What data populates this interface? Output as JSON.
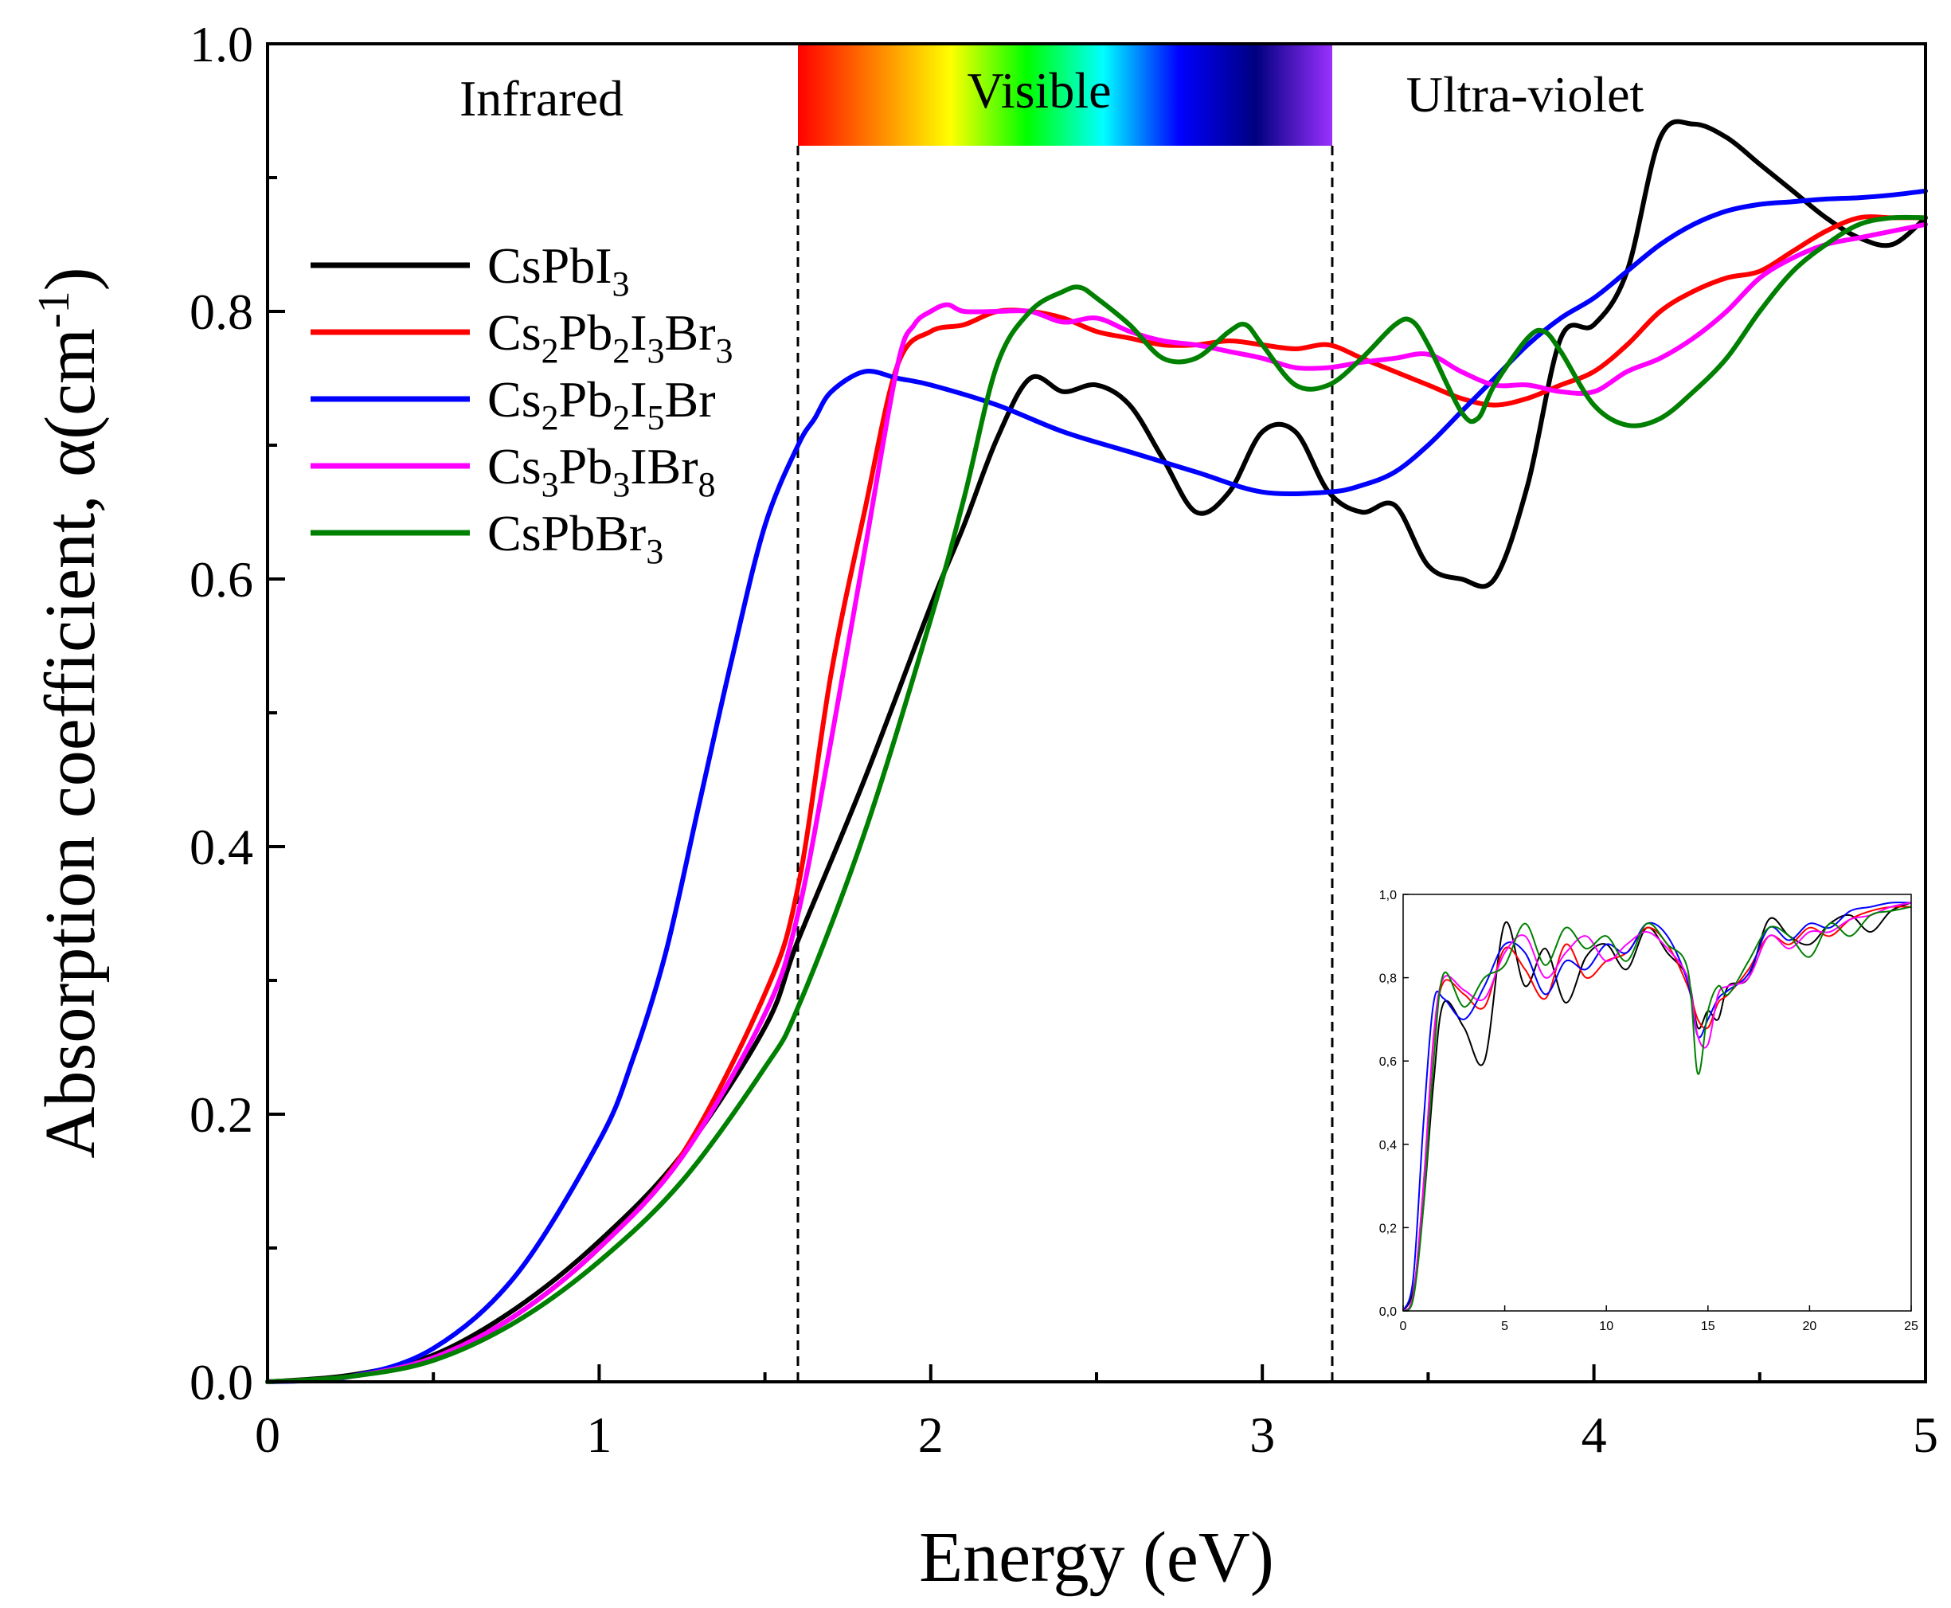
{
  "chart_data": [
    {
      "type": "line",
      "role": "main",
      "title": "",
      "xlabel": "Energy (eV)",
      "ylabel": "Absorption coefficient, α(cm⁻¹)",
      "ylabel_parts": {
        "main": "Absorption coefficient,  α(cm",
        "sup": "-1",
        "close": ")"
      },
      "xlim": [
        0,
        5
      ],
      "ylim": [
        0,
        1.0
      ],
      "xticks": [
        0,
        1,
        2,
        3,
        4,
        5
      ],
      "yticks": [
        0,
        0.2,
        0.4,
        0.6,
        0.8,
        1.0
      ],
      "xtick_labels": [
        "0",
        "1",
        "2",
        "3",
        "4",
        "5"
      ],
      "ytick_labels": [
        "0.0",
        "0.2",
        "0.4",
        "0.6",
        "0.8",
        "1.0"
      ],
      "grid": false,
      "legend_position": "upper-left",
      "regions": [
        {
          "label": "Infrared",
          "from": 0,
          "to": 1.6
        },
        {
          "label": "Visible",
          "from": 1.6,
          "to": 3.2
        },
        {
          "label": "Ultra-violet",
          "from": 3.2,
          "to": 5
        }
      ],
      "boundaries": [
        1.6,
        3.2
      ],
      "spectrum_colors": [
        "#ff0000",
        "#ff8000",
        "#ffff00",
        "#00ff00",
        "#00ffff",
        "#0000ff",
        "#000080",
        "#9b30ff"
      ],
      "series": [
        {
          "name": "CsPbI3",
          "label_parts": [
            [
              "CsPbI",
              ""
            ],
            [
              "3",
              "sub"
            ]
          ],
          "color": "#000000",
          "x": [
            0,
            0.25,
            0.5,
            0.75,
            1.0,
            1.25,
            1.5,
            1.6,
            1.8,
            2.0,
            2.1,
            2.2,
            2.3,
            2.4,
            2.5,
            2.6,
            2.7,
            2.8,
            2.9,
            3.0,
            3.1,
            3.2,
            3.3,
            3.4,
            3.5,
            3.6,
            3.7,
            3.8,
            3.9,
            4.0,
            4.1,
            4.2,
            4.3,
            4.4,
            4.5,
            4.6,
            4.7,
            4.8,
            4.9,
            5.0
          ],
          "y": [
            0,
            0.005,
            0.02,
            0.055,
            0.105,
            0.17,
            0.265,
            0.33,
            0.45,
            0.58,
            0.64,
            0.705,
            0.75,
            0.74,
            0.745,
            0.73,
            0.69,
            0.65,
            0.665,
            0.71,
            0.71,
            0.665,
            0.65,
            0.655,
            0.61,
            0.6,
            0.6,
            0.67,
            0.78,
            0.79,
            0.83,
            0.93,
            0.94,
            0.93,
            0.91,
            0.89,
            0.87,
            0.855,
            0.85,
            0.87
          ]
        },
        {
          "name": "Cs2Pb2I3Br3",
          "label_parts": [
            [
              "Cs",
              ""
            ],
            [
              "2",
              "sub"
            ],
            [
              "Pb",
              ""
            ],
            [
              "2",
              "sub"
            ],
            [
              "I",
              ""
            ],
            [
              "3",
              "sub"
            ],
            [
              "Br",
              ""
            ],
            [
              "3",
              "sub"
            ]
          ],
          "color": "#ff0000",
          "x": [
            0,
            0.25,
            0.5,
            0.75,
            1.0,
            1.25,
            1.5,
            1.6,
            1.7,
            1.8,
            1.9,
            2.0,
            2.1,
            2.2,
            2.3,
            2.4,
            2.5,
            2.6,
            2.7,
            2.8,
            2.9,
            3.0,
            3.1,
            3.2,
            3.3,
            3.4,
            3.5,
            3.6,
            3.7,
            3.8,
            3.9,
            4.0,
            4.1,
            4.2,
            4.3,
            4.4,
            4.5,
            4.6,
            4.7,
            4.8,
            4.9,
            5.0
          ],
          "y": [
            0,
            0.004,
            0.018,
            0.05,
            0.1,
            0.17,
            0.29,
            0.37,
            0.53,
            0.65,
            0.76,
            0.785,
            0.79,
            0.8,
            0.8,
            0.795,
            0.785,
            0.78,
            0.775,
            0.775,
            0.778,
            0.775,
            0.772,
            0.775,
            0.765,
            0.755,
            0.745,
            0.735,
            0.73,
            0.735,
            0.745,
            0.755,
            0.775,
            0.8,
            0.815,
            0.825,
            0.83,
            0.845,
            0.86,
            0.87,
            0.87,
            0.87
          ]
        },
        {
          "name": "Cs2Pb2I5Br",
          "label_parts": [
            [
              "Cs",
              ""
            ],
            [
              "2",
              "sub"
            ],
            [
              "Pb",
              ""
            ],
            [
              "2",
              "sub"
            ],
            [
              "I",
              ""
            ],
            [
              "5",
              "sub"
            ],
            [
              "Br",
              ""
            ]
          ],
          "color": "#0000ff",
          "x": [
            0,
            0.25,
            0.5,
            0.75,
            1.0,
            1.1,
            1.2,
            1.3,
            1.4,
            1.5,
            1.6,
            1.65,
            1.7,
            1.8,
            1.9,
            2.0,
            2.2,
            2.4,
            2.6,
            2.8,
            3.0,
            3.2,
            3.3,
            3.4,
            3.5,
            3.6,
            3.7,
            3.8,
            3.9,
            4.0,
            4.1,
            4.2,
            4.3,
            4.4,
            4.5,
            4.6,
            4.7,
            4.8,
            4.9,
            5.0
          ],
          "y": [
            0,
            0.004,
            0.025,
            0.08,
            0.18,
            0.24,
            0.32,
            0.43,
            0.54,
            0.64,
            0.7,
            0.72,
            0.74,
            0.755,
            0.75,
            0.745,
            0.73,
            0.71,
            0.695,
            0.68,
            0.665,
            0.665,
            0.67,
            0.68,
            0.7,
            0.725,
            0.75,
            0.775,
            0.795,
            0.81,
            0.83,
            0.85,
            0.865,
            0.875,
            0.88,
            0.882,
            0.884,
            0.885,
            0.887,
            0.89
          ]
        },
        {
          "name": "Cs3Pb3IBr8",
          "label_parts": [
            [
              "Cs",
              ""
            ],
            [
              "3",
              "sub"
            ],
            [
              "Pb",
              ""
            ],
            [
              "3",
              "sub"
            ],
            [
              "IBr",
              ""
            ],
            [
              "8",
              "sub"
            ]
          ],
          "color": "#ff00ff",
          "x": [
            0,
            0.25,
            0.5,
            0.75,
            1.0,
            1.25,
            1.5,
            1.6,
            1.7,
            1.8,
            1.9,
            1.95,
            2.0,
            2.05,
            2.1,
            2.2,
            2.3,
            2.4,
            2.5,
            2.6,
            2.7,
            2.8,
            2.9,
            3.0,
            3.1,
            3.2,
            3.3,
            3.4,
            3.5,
            3.6,
            3.7,
            3.8,
            3.9,
            4.0,
            4.1,
            4.2,
            4.3,
            4.4,
            4.5,
            4.6,
            4.7,
            4.8,
            4.9,
            5.0
          ],
          "y": [
            0,
            0.004,
            0.018,
            0.05,
            0.1,
            0.168,
            0.275,
            0.35,
            0.48,
            0.62,
            0.76,
            0.79,
            0.8,
            0.805,
            0.8,
            0.8,
            0.8,
            0.792,
            0.795,
            0.785,
            0.778,
            0.775,
            0.77,
            0.765,
            0.758,
            0.758,
            0.762,
            0.765,
            0.768,
            0.755,
            0.745,
            0.745,
            0.74,
            0.74,
            0.755,
            0.765,
            0.78,
            0.8,
            0.825,
            0.84,
            0.85,
            0.855,
            0.86,
            0.865
          ]
        },
        {
          "name": "CsPbBr3",
          "label_parts": [
            [
              "CsPbBr",
              ""
            ],
            [
              "3",
              "sub"
            ]
          ],
          "color": "#008000",
          "x": [
            0,
            0.25,
            0.5,
            0.75,
            1.0,
            1.25,
            1.5,
            1.6,
            1.8,
            2.0,
            2.1,
            2.2,
            2.3,
            2.4,
            2.45,
            2.5,
            2.6,
            2.7,
            2.8,
            2.9,
            2.95,
            3.0,
            3.1,
            3.2,
            3.3,
            3.4,
            3.45,
            3.5,
            3.6,
            3.65,
            3.7,
            3.8,
            3.85,
            3.9,
            4.0,
            4.1,
            4.2,
            4.3,
            4.4,
            4.5,
            4.6,
            4.7,
            4.8,
            4.9,
            5.0
          ],
          "y": [
            0,
            0.004,
            0.016,
            0.045,
            0.09,
            0.15,
            0.235,
            0.28,
            0.41,
            0.57,
            0.66,
            0.76,
            0.8,
            0.815,
            0.818,
            0.81,
            0.79,
            0.765,
            0.765,
            0.785,
            0.79,
            0.775,
            0.745,
            0.745,
            0.765,
            0.79,
            0.793,
            0.775,
            0.725,
            0.72,
            0.745,
            0.78,
            0.785,
            0.77,
            0.73,
            0.715,
            0.72,
            0.74,
            0.765,
            0.8,
            0.83,
            0.85,
            0.865,
            0.87,
            0.87
          ]
        }
      ]
    },
    {
      "type": "line",
      "role": "inset",
      "xlim": [
        0,
        25
      ],
      "ylim": [
        0,
        1.0
      ],
      "xticks": [
        0,
        5,
        10,
        15,
        20,
        25
      ],
      "yticks": [
        0,
        0.2,
        0.4,
        0.6,
        0.8,
        1.0
      ],
      "xtick_labels": [
        "0",
        "5",
        "10",
        "15",
        "20",
        "25"
      ],
      "ytick_labels": [
        "0,0",
        "0,2",
        "0,4",
        "0,6",
        "0,8",
        "1,0"
      ],
      "series": [
        {
          "name": "CsPbI3",
          "color": "#000000",
          "x": [
            0,
            0.5,
            1,
            1.5,
            2,
            3,
            4,
            5,
            6,
            7,
            8,
            9,
            10,
            11,
            12,
            13,
            14,
            14.5,
            15,
            15.5,
            16,
            17,
            18,
            19,
            20,
            21,
            22,
            23,
            24,
            25
          ],
          "y": [
            0,
            0.05,
            0.25,
            0.55,
            0.74,
            0.68,
            0.6,
            0.93,
            0.78,
            0.87,
            0.74,
            0.85,
            0.88,
            0.82,
            0.92,
            0.86,
            0.8,
            0.68,
            0.72,
            0.7,
            0.78,
            0.8,
            0.94,
            0.9,
            0.88,
            0.93,
            0.95,
            0.91,
            0.96,
            0.98
          ]
        },
        {
          "name": "Cs2Pb2I3Br3",
          "color": "#ff0000",
          "x": [
            0,
            0.5,
            1,
            1.5,
            2,
            3,
            4,
            5,
            6,
            7,
            8,
            9,
            10,
            11,
            12,
            13,
            14,
            14.5,
            15,
            15.5,
            16,
            17,
            18,
            19,
            20,
            21,
            22,
            23,
            24,
            25
          ],
          "y": [
            0,
            0.04,
            0.3,
            0.65,
            0.79,
            0.76,
            0.73,
            0.87,
            0.82,
            0.75,
            0.88,
            0.8,
            0.84,
            0.86,
            0.92,
            0.88,
            0.78,
            0.7,
            0.68,
            0.74,
            0.76,
            0.82,
            0.9,
            0.88,
            0.92,
            0.9,
            0.94,
            0.96,
            0.97,
            0.97
          ]
        },
        {
          "name": "Cs2Pb2I5Br",
          "color": "#0000ff",
          "x": [
            0,
            0.5,
            1,
            1.5,
            2,
            3,
            4,
            5,
            6,
            7,
            8,
            9,
            10,
            11,
            12,
            13,
            14,
            14.5,
            15,
            15.5,
            16,
            17,
            18,
            19,
            20,
            21,
            22,
            23,
            24,
            25
          ],
          "y": [
            0,
            0.08,
            0.45,
            0.74,
            0.75,
            0.7,
            0.78,
            0.88,
            0.86,
            0.76,
            0.84,
            0.82,
            0.88,
            0.86,
            0.93,
            0.9,
            0.79,
            0.66,
            0.7,
            0.75,
            0.77,
            0.81,
            0.92,
            0.89,
            0.93,
            0.92,
            0.96,
            0.97,
            0.98,
            0.98
          ]
        },
        {
          "name": "Cs3Pb3IBr8",
          "color": "#ff00ff",
          "x": [
            0,
            0.5,
            1,
            1.5,
            2,
            3,
            4,
            5,
            6,
            7,
            8,
            9,
            10,
            11,
            12,
            13,
            14,
            14.5,
            15,
            15.5,
            16,
            17,
            18,
            19,
            20,
            21,
            22,
            23,
            24,
            25
          ],
          "y": [
            0,
            0.04,
            0.3,
            0.66,
            0.8,
            0.77,
            0.75,
            0.86,
            0.9,
            0.8,
            0.86,
            0.9,
            0.84,
            0.88,
            0.91,
            0.87,
            0.8,
            0.66,
            0.64,
            0.76,
            0.78,
            0.8,
            0.9,
            0.87,
            0.91,
            0.91,
            0.94,
            0.95,
            0.97,
            0.98
          ]
        },
        {
          "name": "CsPbBr3",
          "color": "#008000",
          "x": [
            0,
            0.5,
            1,
            1.5,
            2,
            3,
            4,
            5,
            6,
            7,
            8,
            9,
            10,
            11,
            12,
            13,
            14,
            14.5,
            15,
            15.5,
            16,
            17,
            18,
            19,
            20,
            21,
            22,
            23,
            24,
            25
          ],
          "y": [
            0,
            0.03,
            0.25,
            0.6,
            0.81,
            0.73,
            0.8,
            0.83,
            0.93,
            0.83,
            0.92,
            0.87,
            0.9,
            0.84,
            0.93,
            0.88,
            0.82,
            0.57,
            0.72,
            0.78,
            0.76,
            0.84,
            0.92,
            0.9,
            0.85,
            0.93,
            0.9,
            0.95,
            0.96,
            0.97
          ]
        }
      ]
    }
  ]
}
